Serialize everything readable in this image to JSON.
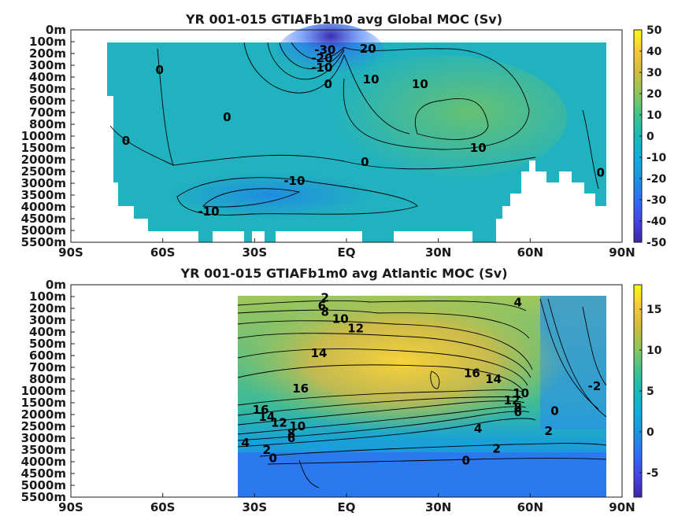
{
  "chart_data": [
    {
      "type": "heatmap",
      "title": "YR 001-015 GTIAFb1m0 avg  Global MOC (Sv)",
      "x_ticks": [
        "90S",
        "60S",
        "30S",
        "EQ",
        "30N",
        "60N",
        "90N"
      ],
      "x_values": [
        -90,
        -60,
        -30,
        0,
        30,
        60,
        90
      ],
      "y_ticks": [
        "0m",
        "100m",
        "200m",
        "300m",
        "400m",
        "500m",
        "600m",
        "700m",
        "800m",
        "1000m",
        "1500m",
        "2000m",
        "2500m",
        "3000m",
        "3500m",
        "4000m",
        "4500m",
        "5000m",
        "5500m"
      ],
      "colorbar": {
        "min": -50,
        "max": 50,
        "ticks": [
          "50",
          "40",
          "30",
          "20",
          "10",
          "0",
          "-10",
          "-20",
          "-30",
          "-40",
          "-50"
        ]
      },
      "contour_labels": [
        {
          "text": "-30",
          "lat": -7,
          "depth_index": 1.7
        },
        {
          "text": "-20",
          "lat": -8,
          "depth_index": 2.4
        },
        {
          "text": "-10",
          "lat": -8,
          "depth_index": 3.2
        },
        {
          "text": "0",
          "lat": -6,
          "depth_index": 4.6
        },
        {
          "text": "20",
          "lat": 7,
          "depth_index": 1.6
        },
        {
          "text": "10",
          "lat": 8,
          "depth_index": 4.2
        },
        {
          "text": "10",
          "lat": 24,
          "depth_index": 4.6
        },
        {
          "text": "10",
          "lat": 43,
          "depth_index": 10.0
        },
        {
          "text": "0",
          "lat": 6,
          "depth_index": 11.2
        },
        {
          "text": "-10",
          "lat": -17,
          "depth_index": 12.8
        },
        {
          "text": "-10",
          "lat": -45,
          "depth_index": 15.4
        },
        {
          "text": "0",
          "lat": -61,
          "depth_index": 3.4
        },
        {
          "text": "0",
          "lat": -39,
          "depth_index": 7.4
        },
        {
          "text": "0",
          "lat": -72,
          "depth_index": 9.4
        },
        {
          "text": "0",
          "lat": 83,
          "depth_index": 12.1
        }
      ]
    },
    {
      "type": "heatmap",
      "title": "YR 001-015 GTIAFb1m0 avg  Atlantic MOC (Sv)",
      "x_ticks": [
        "90S",
        "60S",
        "30S",
        "EQ",
        "30N",
        "60N",
        "90N"
      ],
      "x_values": [
        -90,
        -60,
        -30,
        0,
        30,
        60,
        90
      ],
      "y_ticks": [
        "0m",
        "100m",
        "200m",
        "300m",
        "400m",
        "500m",
        "600m",
        "700m",
        "800m",
        "1000m",
        "1500m",
        "2000m",
        "2500m",
        "3000m",
        "3500m",
        "4000m",
        "4500m",
        "5000m",
        "5500m"
      ],
      "colorbar": {
        "min": -8,
        "max": 18,
        "ticks": [
          "15",
          "10",
          "5",
          "0",
          "-5"
        ]
      },
      "contour_labels": [
        {
          "text": "2",
          "lat": -7,
          "depth_index": 1.1
        },
        {
          "text": "6",
          "lat": -8,
          "depth_index": 1.8
        },
        {
          "text": "8",
          "lat": -7,
          "depth_index": 2.3
        },
        {
          "text": "10",
          "lat": -2,
          "depth_index": 2.9
        },
        {
          "text": "12",
          "lat": 3,
          "depth_index": 3.7
        },
        {
          "text": "14",
          "lat": -9,
          "depth_index": 5.8
        },
        {
          "text": "16",
          "lat": -15,
          "depth_index": 8.8
        },
        {
          "text": "16",
          "lat": 41,
          "depth_index": 7.5
        },
        {
          "text": "14",
          "lat": 48,
          "depth_index": 8.0
        },
        {
          "text": "12",
          "lat": 54,
          "depth_index": 9.8
        },
        {
          "text": "10",
          "lat": 57,
          "depth_index": 9.2
        },
        {
          "text": "8",
          "lat": 56,
          "depth_index": 10.4
        },
        {
          "text": "6",
          "lat": 56,
          "depth_index": 10.8
        },
        {
          "text": "4",
          "lat": 56,
          "depth_index": 1.5
        },
        {
          "text": "16",
          "lat": -28,
          "depth_index": 10.6
        },
        {
          "text": "14",
          "lat": -26,
          "depth_index": 11.2
        },
        {
          "text": "12",
          "lat": -22,
          "depth_index": 11.7
        },
        {
          "text": "10",
          "lat": -16,
          "depth_index": 12.0
        },
        {
          "text": "8",
          "lat": -18,
          "depth_index": 12.6
        },
        {
          "text": "6",
          "lat": -18,
          "depth_index": 13.0
        },
        {
          "text": "4",
          "lat": 43,
          "depth_index": 12.2
        },
        {
          "text": "4",
          "lat": -33,
          "depth_index": 13.4
        },
        {
          "text": "2",
          "lat": -26,
          "depth_index": 14.0
        },
        {
          "text": "0",
          "lat": -24,
          "depth_index": 14.7
        },
        {
          "text": "2",
          "lat": 49,
          "depth_index": 13.9
        },
        {
          "text": "0",
          "lat": 39,
          "depth_index": 14.9
        },
        {
          "text": "2",
          "lat": 66,
          "depth_index": 12.4
        },
        {
          "text": "0",
          "lat": 68,
          "depth_index": 10.7
        },
        {
          "text": "-2",
          "lat": 81,
          "depth_index": 8.6
        }
      ]
    }
  ]
}
